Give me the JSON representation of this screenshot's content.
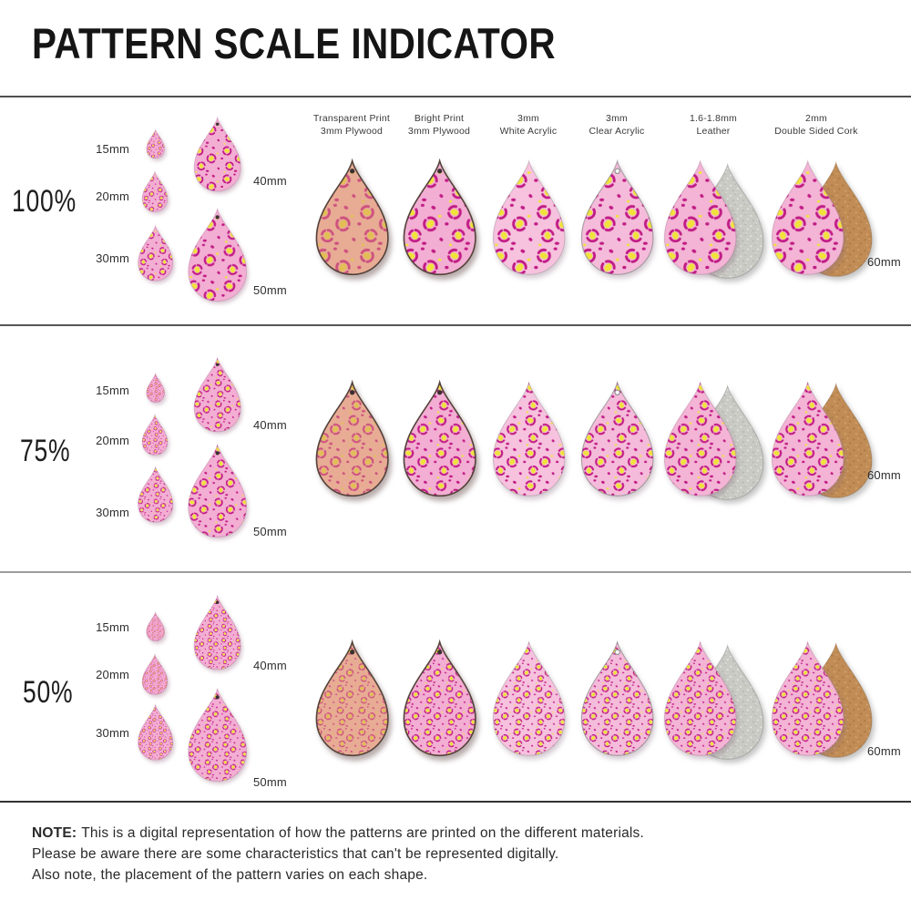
{
  "title": "PATTERN SCALE INDICATOR",
  "materials": [
    {
      "line1": "Transparent Print",
      "line2": "3mm Plywood"
    },
    {
      "line1": "Bright Print",
      "line2": "3mm Plywood"
    },
    {
      "line1": "3mm",
      "line2": "White Acrylic"
    },
    {
      "line1": "3mm",
      "line2": "Clear Acrylic"
    },
    {
      "line1": "1.6-1.8mm",
      "line2": "Leather"
    },
    {
      "line1": "2mm",
      "line2": "Double Sided Cork"
    }
  ],
  "rows": [
    {
      "scale_label": "100%",
      "pattern_scale": "100",
      "sizes": [
        "15mm",
        "20mm",
        "30mm",
        "40mm",
        "50mm"
      ],
      "large_size": "60mm"
    },
    {
      "scale_label": "75%",
      "pattern_scale": "75",
      "sizes": [
        "15mm",
        "20mm",
        "30mm",
        "40mm",
        "50mm"
      ],
      "large_size": "60mm"
    },
    {
      "scale_label": "50%",
      "pattern_scale": "50",
      "sizes": [
        "15mm",
        "20mm",
        "30mm",
        "40mm",
        "50mm"
      ],
      "large_size": "60mm"
    }
  ],
  "note": {
    "heading": "NOTE:",
    "line1": "This is a digital representation of how the patterns are printed on the different materials.",
    "line2": "Please be aware there are some characteristics that can't be represented digitally.",
    "line3": "Also note, the placement of the pattern varies on each shape."
  },
  "palette": {
    "pattern_pink": "#F3AED3",
    "pattern_magenta": "#C11C85",
    "pattern_yellow": "#F0E23B",
    "plywood_transparent_tint": "#E8AC95",
    "muted_magenta": "#CD527E",
    "muted_yellow": "#E2BE55",
    "white_acrylic_pink": "#F6C2DE",
    "clear_acrylic_pink": "#F4BCDA",
    "leather_suede_gray": "#C9CAC4",
    "cork_tan": "#C18C55"
  }
}
